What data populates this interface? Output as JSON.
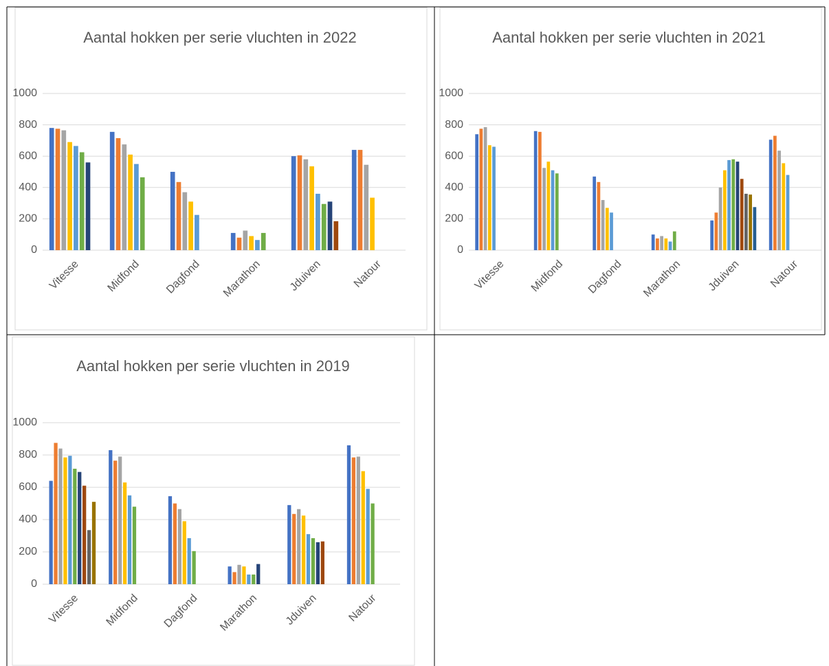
{
  "chart_data": [
    {
      "type": "bar",
      "title": "Aantal hokken per serie vluchten in 2022",
      "categories": [
        "Vitesse",
        "Midfond",
        "Dagfond",
        "Marathon",
        "Jduiven",
        "Natour"
      ],
      "ylim": [
        0,
        1000
      ],
      "yticks": [
        0,
        200,
        400,
        600,
        800,
        1000
      ],
      "grid": true,
      "series": [
        {
          "color": "#4472c4",
          "values": [
            780,
            755,
            500,
            110,
            600,
            640
          ]
        },
        {
          "color": "#ed7d31",
          "values": [
            775,
            715,
            435,
            80,
            605,
            640
          ]
        },
        {
          "color": "#a5a5a5",
          "values": [
            765,
            675,
            370,
            125,
            580,
            545
          ]
        },
        {
          "color": "#ffc000",
          "values": [
            690,
            610,
            310,
            90,
            535,
            335
          ]
        },
        {
          "color": "#5b9bd5",
          "values": [
            665,
            550,
            225,
            65,
            360,
            null
          ]
        },
        {
          "color": "#70ad47",
          "values": [
            625,
            465,
            null,
            110,
            295,
            null
          ]
        },
        {
          "color": "#264478",
          "values": [
            560,
            null,
            null,
            null,
            310,
            null
          ]
        },
        {
          "color": "#9e480e",
          "values": [
            null,
            null,
            null,
            null,
            185,
            null
          ]
        }
      ]
    },
    {
      "type": "bar",
      "title": "Aantal hokken per serie vluchten in 2021",
      "categories": [
        "Vitesse",
        "Midfond",
        "Dagfond",
        "Marathon",
        "Jduiven",
        "Natour"
      ],
      "ylim": [
        0,
        1000
      ],
      "yticks": [
        0,
        200,
        400,
        600,
        800,
        1000
      ],
      "grid": true,
      "series": [
        {
          "color": "#4472c4",
          "values": [
            740,
            760,
            470,
            100,
            190,
            705
          ]
        },
        {
          "color": "#ed7d31",
          "values": [
            775,
            755,
            435,
            75,
            240,
            730
          ]
        },
        {
          "color": "#a5a5a5",
          "values": [
            785,
            525,
            320,
            90,
            400,
            635
          ]
        },
        {
          "color": "#ffc000",
          "values": [
            670,
            565,
            270,
            75,
            510,
            555
          ]
        },
        {
          "color": "#5b9bd5",
          "values": [
            660,
            510,
            240,
            55,
            575,
            480
          ]
        },
        {
          "color": "#70ad47",
          "values": [
            null,
            490,
            null,
            120,
            580,
            null
          ]
        },
        {
          "color": "#264478",
          "values": [
            null,
            null,
            null,
            null,
            565,
            null
          ]
        },
        {
          "color": "#9e480e",
          "values": [
            null,
            null,
            null,
            null,
            455,
            null
          ]
        },
        {
          "color": "#636363",
          "values": [
            null,
            null,
            null,
            null,
            360,
            null
          ]
        },
        {
          "color": "#997300",
          "values": [
            null,
            null,
            null,
            null,
            355,
            null
          ]
        },
        {
          "color": "#255e91",
          "values": [
            null,
            null,
            null,
            null,
            275,
            null
          ]
        }
      ]
    },
    {
      "type": "bar",
      "title": "Aantal hokken per serie vluchten in 2019",
      "categories": [
        "Vitesse",
        "Midfond",
        "Dagfond",
        "Marathon",
        "Jduiven",
        "Natour"
      ],
      "ylim": [
        0,
        1000
      ],
      "yticks": [
        0,
        200,
        400,
        600,
        800,
        1000
      ],
      "grid": true,
      "series": [
        {
          "color": "#4472c4",
          "values": [
            640,
            830,
            545,
            110,
            490,
            860
          ]
        },
        {
          "color": "#ed7d31",
          "values": [
            875,
            765,
            500,
            75,
            435,
            785
          ]
        },
        {
          "color": "#a5a5a5",
          "values": [
            840,
            790,
            465,
            120,
            465,
            790
          ]
        },
        {
          "color": "#ffc000",
          "values": [
            785,
            630,
            390,
            110,
            425,
            700
          ]
        },
        {
          "color": "#5b9bd5",
          "values": [
            795,
            550,
            285,
            60,
            310,
            590
          ]
        },
        {
          "color": "#70ad47",
          "values": [
            715,
            480,
            205,
            60,
            285,
            500
          ]
        },
        {
          "color": "#264478",
          "values": [
            695,
            null,
            null,
            125,
            260,
            null
          ]
        },
        {
          "color": "#9e480e",
          "values": [
            610,
            null,
            null,
            null,
            265,
            null
          ]
        },
        {
          "color": "#636363",
          "values": [
            335,
            null,
            null,
            null,
            null,
            null
          ]
        },
        {
          "color": "#997300",
          "values": [
            510,
            null,
            null,
            null,
            null,
            null
          ]
        }
      ]
    }
  ]
}
